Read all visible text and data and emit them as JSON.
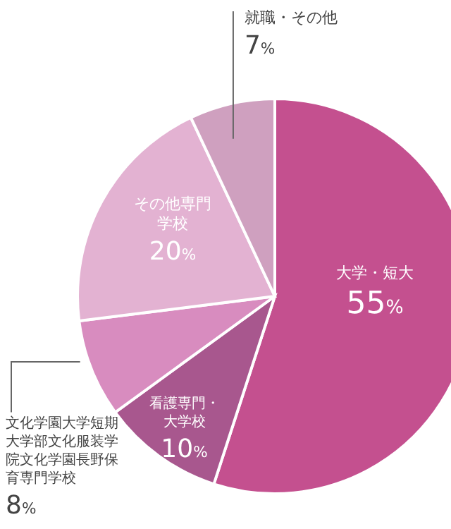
{
  "chart_data": {
    "type": "pie",
    "categories": [
      "大学・短大",
      "看護専門・大学校",
      "文化学園大学短期大学部文化服装学院文化学園長野保育専門学校",
      "その他専門学校",
      "就職・その他"
    ],
    "values": [
      55,
      10,
      8,
      20,
      7
    ],
    "value_labels": [
      "55%",
      "10%",
      "8%",
      "20%",
      "7%"
    ],
    "colors": [
      "#c4508f",
      "#a8578e",
      "#d88cbf",
      "#e3b2d2",
      "#cfa0bf"
    ]
  }
}
